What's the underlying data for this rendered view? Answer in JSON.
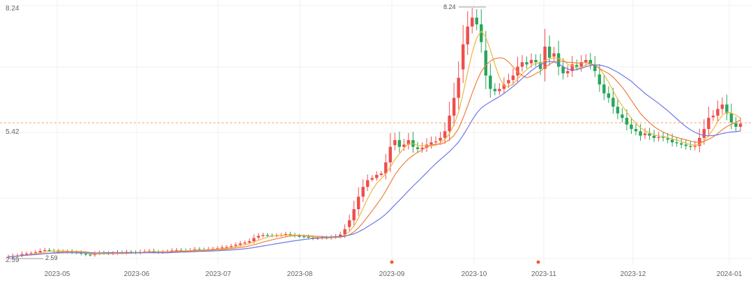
{
  "chart_data": {
    "type": "candlestick",
    "ylim": [
      2.59,
      8.24
    ],
    "y_ticks": [
      {
        "value": 8.24,
        "label": "8.24"
      },
      {
        "value": 5.42,
        "label": "5.42"
      },
      {
        "value": 2.59,
        "label": "2.59"
      }
    ],
    "x_ticks": [
      "2023-05",
      "2023-06",
      "2023-07",
      "2023-08",
      "2023-09",
      "2023-10",
      "2023-11",
      "2023-12",
      "2024-01"
    ],
    "annotations": {
      "max": {
        "value": 8.24,
        "label": "8.24"
      },
      "min": {
        "value": 2.59,
        "label": "2.59"
      }
    },
    "reference_line": {
      "value": 5.64,
      "color": "#f5a05f"
    },
    "colors": {
      "up": "#ef4d4d",
      "down": "#26a65b",
      "ma5": "#f0b63c",
      "ma10": "#f07f3c",
      "ma20": "#6e78e6",
      "grid": "#f0f0f0",
      "marker": "#f25c2c",
      "axis_text": "#666666"
    },
    "event_markers": [
      "2023-09",
      "2023-11"
    ],
    "moving_averages": [
      "ma5",
      "ma10",
      "ma20"
    ],
    "closes": [
      2.63,
      2.65,
      2.66,
      2.69,
      2.7,
      2.71,
      2.73,
      2.76,
      2.78,
      2.77,
      2.76,
      2.75,
      2.74,
      2.75,
      2.73,
      2.72,
      2.7,
      2.68,
      2.67,
      2.7,
      2.72,
      2.71,
      2.7,
      2.71,
      2.73,
      2.72,
      2.74,
      2.73,
      2.72,
      2.74,
      2.75,
      2.76,
      2.74,
      2.73,
      2.74,
      2.75,
      2.77,
      2.78,
      2.77,
      2.76,
      2.78,
      2.8,
      2.79,
      2.78,
      2.8,
      2.81,
      2.82,
      2.84,
      2.85,
      2.87,
      2.9,
      2.93,
      2.95,
      2.98,
      3.05,
      3.1,
      3.12,
      3.11,
      3.1,
      3.11,
      3.12,
      3.14,
      3.12,
      3.1,
      3.09,
      3.08,
      3.06,
      3.04,
      3.05,
      3.06,
      3.05,
      3.07,
      3.09,
      3.13,
      3.25,
      3.45,
      3.7,
      3.98,
      4.2,
      4.35,
      4.4,
      4.47,
      4.5,
      4.75,
      5.1,
      5.25,
      5.1,
      5.15,
      5.25,
      5.1,
      5.05,
      5.08,
      5.15,
      5.2,
      5.22,
      5.3,
      5.45,
      5.8,
      6.2,
      6.65,
      7.4,
      7.8,
      8.0,
      7.85,
      7.45,
      6.7,
      6.4,
      6.35,
      6.4,
      6.5,
      6.6,
      6.7,
      6.9,
      7.0,
      6.95,
      7.05,
      7.0,
      6.85,
      7.35,
      7.1,
      7.2,
      6.9,
      6.75,
      6.8,
      6.95,
      6.9,
      7.0,
      7.05,
      6.95,
      6.8,
      6.5,
      6.3,
      6.2,
      6.0,
      5.85,
      5.75,
      5.6,
      5.5,
      5.45,
      5.35,
      5.4,
      5.35,
      5.3,
      5.32,
      5.3,
      5.26,
      5.2,
      5.18,
      5.15,
      5.12,
      5.1,
      5.12,
      5.3,
      5.5,
      5.75,
      5.8,
      5.95,
      6.05,
      5.85,
      5.65,
      5.55,
      5.62
    ]
  }
}
